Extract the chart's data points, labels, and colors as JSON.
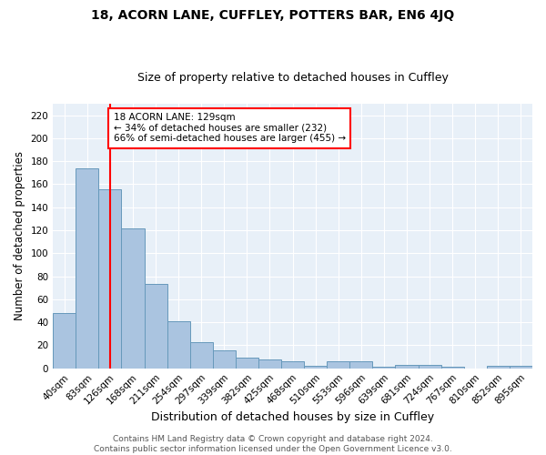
{
  "title": "18, ACORN LANE, CUFFLEY, POTTERS BAR, EN6 4JQ",
  "subtitle": "Size of property relative to detached houses in Cuffley",
  "xlabel": "Distribution of detached houses by size in Cuffley",
  "ylabel": "Number of detached properties",
  "categories": [
    "40sqm",
    "83sqm",
    "126sqm",
    "168sqm",
    "211sqm",
    "254sqm",
    "297sqm",
    "339sqm",
    "382sqm",
    "425sqm",
    "468sqm",
    "510sqm",
    "553sqm",
    "596sqm",
    "639sqm",
    "681sqm",
    "724sqm",
    "767sqm",
    "810sqm",
    "852sqm",
    "895sqm"
  ],
  "values": [
    48,
    174,
    156,
    122,
    73,
    41,
    23,
    16,
    9,
    8,
    6,
    2,
    6,
    6,
    1,
    3,
    3,
    1,
    0,
    2,
    2
  ],
  "bar_color": "#aac4e0",
  "bar_edge_color": "#6699bb",
  "background_color": "#e8f0f8",
  "vline_x_idx": 2,
  "vline_color": "red",
  "annotation_text": "18 ACORN LANE: 129sqm\n← 34% of detached houses are smaller (232)\n66% of semi-detached houses are larger (455) →",
  "annotation_box_color": "white",
  "annotation_box_edge_color": "red",
  "ylim": [
    0,
    230
  ],
  "yticks": [
    0,
    20,
    40,
    60,
    80,
    100,
    120,
    140,
    160,
    180,
    200,
    220
  ],
  "footer": "Contains HM Land Registry data © Crown copyright and database right 2024.\nContains public sector information licensed under the Open Government Licence v3.0.",
  "title_fontsize": 10,
  "subtitle_fontsize": 9,
  "xlabel_fontsize": 9,
  "ylabel_fontsize": 8.5,
  "tick_fontsize": 7.5,
  "footer_fontsize": 6.5,
  "annotation_fontsize": 7.5
}
